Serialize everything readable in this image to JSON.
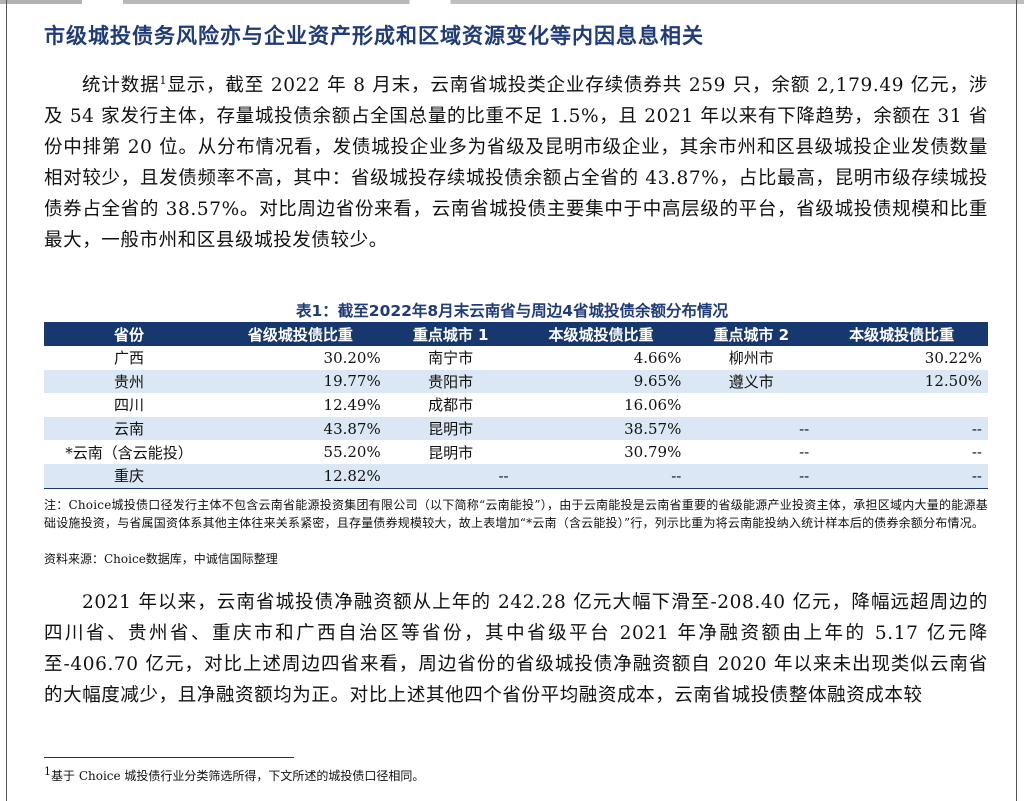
{
  "section": {
    "heading": "市级城投债务风险亦与企业资产形成和区域资源变化等内因息息相关"
  },
  "para1": {
    "before_sup": "统计数据",
    "sup": "1",
    "after_sup": "显示，截至 2022 年 8 月末，云南省城投类企业存续债券共 259 只，余额 2,179.49 亿元，涉及 54 家发行主体，存量城投债余额占全国总量的比重不足 1.5%，且 2021 年以来有下降趋势，余额在 31 省份中排第 20 位。从分布情况看，发债城投企业多为省级及昆明市级企业，其余市州和区县级城投企业发债数量相对较少，且发债频率不高，其中：省级城投存续城投债余额占全省的 43.87%，占比最高，昆明市级存续城投债券占全省的 38.57%。对比周边省份来看，云南省城投债主要集中于中高层级的平台，省级城投债规模和比重最大，一般市州和区县级城投发债较少。"
  },
  "table": {
    "title": "表1：截至2022年8月末云南省与周边4省城投债余额分布情况",
    "headers": [
      "省份",
      "省级城投债比重",
      "重点城市 1",
      "本级城投债比重",
      "重点城市 2",
      "本级城投债比重"
    ],
    "rows": [
      [
        "广西",
        "30.20%",
        "南宁市",
        "4.66%",
        "柳州市",
        "30.22%"
      ],
      [
        "贵州",
        "19.77%",
        "贵阳市",
        "9.65%",
        "遵义市",
        "12.50%"
      ],
      [
        "四川",
        "12.49%",
        "成都市",
        "16.06%",
        "",
        ""
      ],
      [
        "云南",
        "43.87%",
        "昆明市",
        "38.57%",
        "--",
        "--"
      ],
      [
        "*云南（含云能投）",
        "55.20%",
        "昆明市",
        "30.79%",
        "--",
        "--"
      ],
      [
        "重庆",
        "12.82%",
        "--",
        "--",
        "--",
        "--"
      ]
    ]
  },
  "note": "注：Choice城投债口径发行主体不包含云南省能源投资集团有限公司（以下简称“云南能投”），由于云南能投是云南省重要的省级能源产业投资主体，承担区域内大量的能源基础设施投资，与省属国资体系其他主体往来关系紧密，且存量债券规模较大，故上表增加“*云南（含云能投）”行，列示比重为将云南能投纳入统计样本后的债券余额分布情况。",
  "source": "资料来源：Choice数据库，中诚信国际整理",
  "para2": "2021 年以来，云南省城投债净融资额从上年的 242.28 亿元大幅下滑至-208.40 亿元，降幅远超周边的四川省、贵州省、重庆市和广西自治区等省份，其中省级平台 2021 年净融资额由上年的 5.17 亿元降至-406.70 亿元，对比上述周边四省来看，周边省份的省级城投债净融资额自 2020 年以来未出现类似云南省的大幅度减少，且净融资额均为正。对比上述其他四个省份平均融资成本，云南省城投债整体融资成本较",
  "footnote": {
    "mark": "1",
    "text": "基于 Choice 城投债行业分类筛选所得，下文所述的城投债口径相同。"
  }
}
